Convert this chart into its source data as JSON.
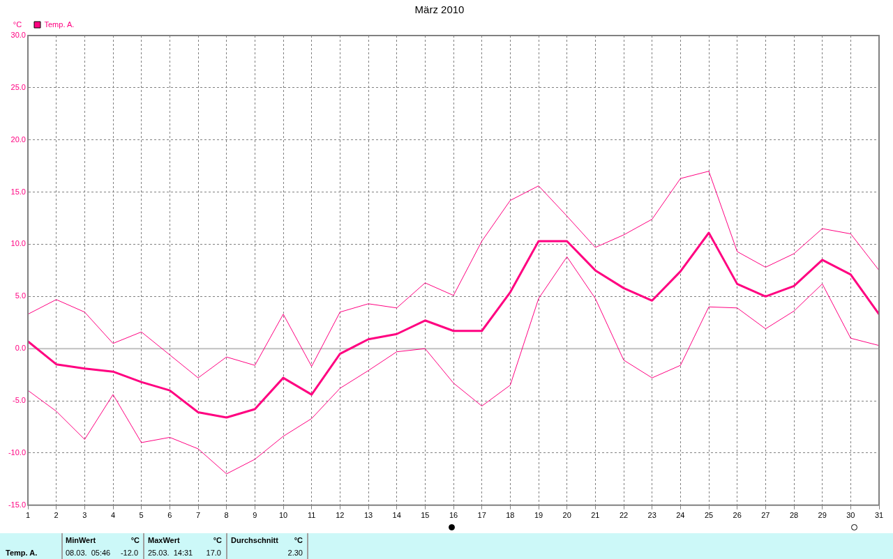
{
  "chart_data": {
    "type": "line",
    "title": "März 2010",
    "ylabel": "°C",
    "x": [
      1,
      2,
      3,
      4,
      5,
      6,
      7,
      8,
      9,
      10,
      11,
      12,
      13,
      14,
      15,
      16,
      17,
      18,
      19,
      20,
      21,
      22,
      23,
      24,
      25,
      26,
      27,
      28,
      29,
      30,
      31
    ],
    "series": [
      {
        "color": "#ff0080",
        "values": [
          3.3,
          4.7,
          3.5,
          0.5,
          1.6,
          -0.6,
          -2.8,
          -0.8,
          -1.6,
          3.3,
          -1.7,
          3.5,
          4.3,
          3.9,
          6.3,
          5.1,
          10.3,
          14.2,
          15.6,
          12.7,
          9.7,
          10.9,
          12.4,
          16.3,
          17.0,
          9.3,
          7.8,
          9.1,
          11.5,
          11.0,
          7.5
        ]
      },
      {
        "name": "Temp. A.",
        "color": "#ff0080",
        "values": [
          0.7,
          -1.5,
          -1.9,
          -2.2,
          -3.2,
          -4.0,
          -6.1,
          -6.6,
          -5.8,
          -2.8,
          -4.4,
          -0.5,
          0.9,
          1.4,
          2.7,
          1.7,
          1.7,
          5.4,
          10.3,
          10.3,
          7.5,
          5.8,
          4.6,
          7.4,
          11.1,
          6.2,
          5.0,
          6.0,
          8.5,
          7.1,
          3.3
        ]
      },
      {
        "color": "#ff0080",
        "values": [
          -4.0,
          -6.0,
          -8.7,
          -4.4,
          -9.0,
          -8.5,
          -9.6,
          -12.0,
          -10.6,
          -8.4,
          -6.7,
          -3.8,
          -2.1,
          -0.3,
          0.0,
          -3.3,
          -5.5,
          -3.5,
          4.8,
          8.8,
          4.8,
          -1.1,
          -2.8,
          -1.6,
          4.0,
          3.9,
          1.9,
          3.6,
          6.2,
          1.0,
          0.3
        ]
      }
    ],
    "xlim": [
      1,
      31
    ],
    "xticks": [
      1,
      2,
      3,
      4,
      5,
      6,
      7,
      8,
      9,
      10,
      11,
      12,
      13,
      14,
      15,
      16,
      17,
      18,
      19,
      20,
      21,
      22,
      23,
      24,
      25,
      26,
      27,
      28,
      29,
      30,
      31
    ],
    "ylim": [
      -15,
      30
    ],
    "yticks": [
      {
        "value": -15,
        "label": "-15.0"
      },
      {
        "value": -10,
        "label": "-10.0"
      },
      {
        "value": -5,
        "label": "-5.0"
      },
      {
        "value": 0,
        "label": "0.0"
      },
      {
        "value": 5,
        "label": "5.0"
      },
      {
        "value": 10,
        "label": "10.0"
      },
      {
        "value": 15,
        "label": "15.0"
      },
      {
        "value": 20,
        "label": "20.0"
      },
      {
        "value": 25,
        "label": "25.0"
      },
      {
        "value": 30,
        "label": "30.0"
      }
    ],
    "ref_lines": [
      {
        "axis": "y",
        "value": 0,
        "color": "#c0c0c0"
      }
    ],
    "grid": true,
    "legend": "top left",
    "marker": "none",
    "line_style": "solid",
    "annotations": [
      "MinWert",
      "°C",
      "MaxWert",
      "°C",
      "Durchschnitt",
      "°C",
      "Temp. A.",
      "08.03.  05:46",
      "-12.0",
      "25.03.  14:31",
      "17.0",
      "2.30"
    ]
  }
}
